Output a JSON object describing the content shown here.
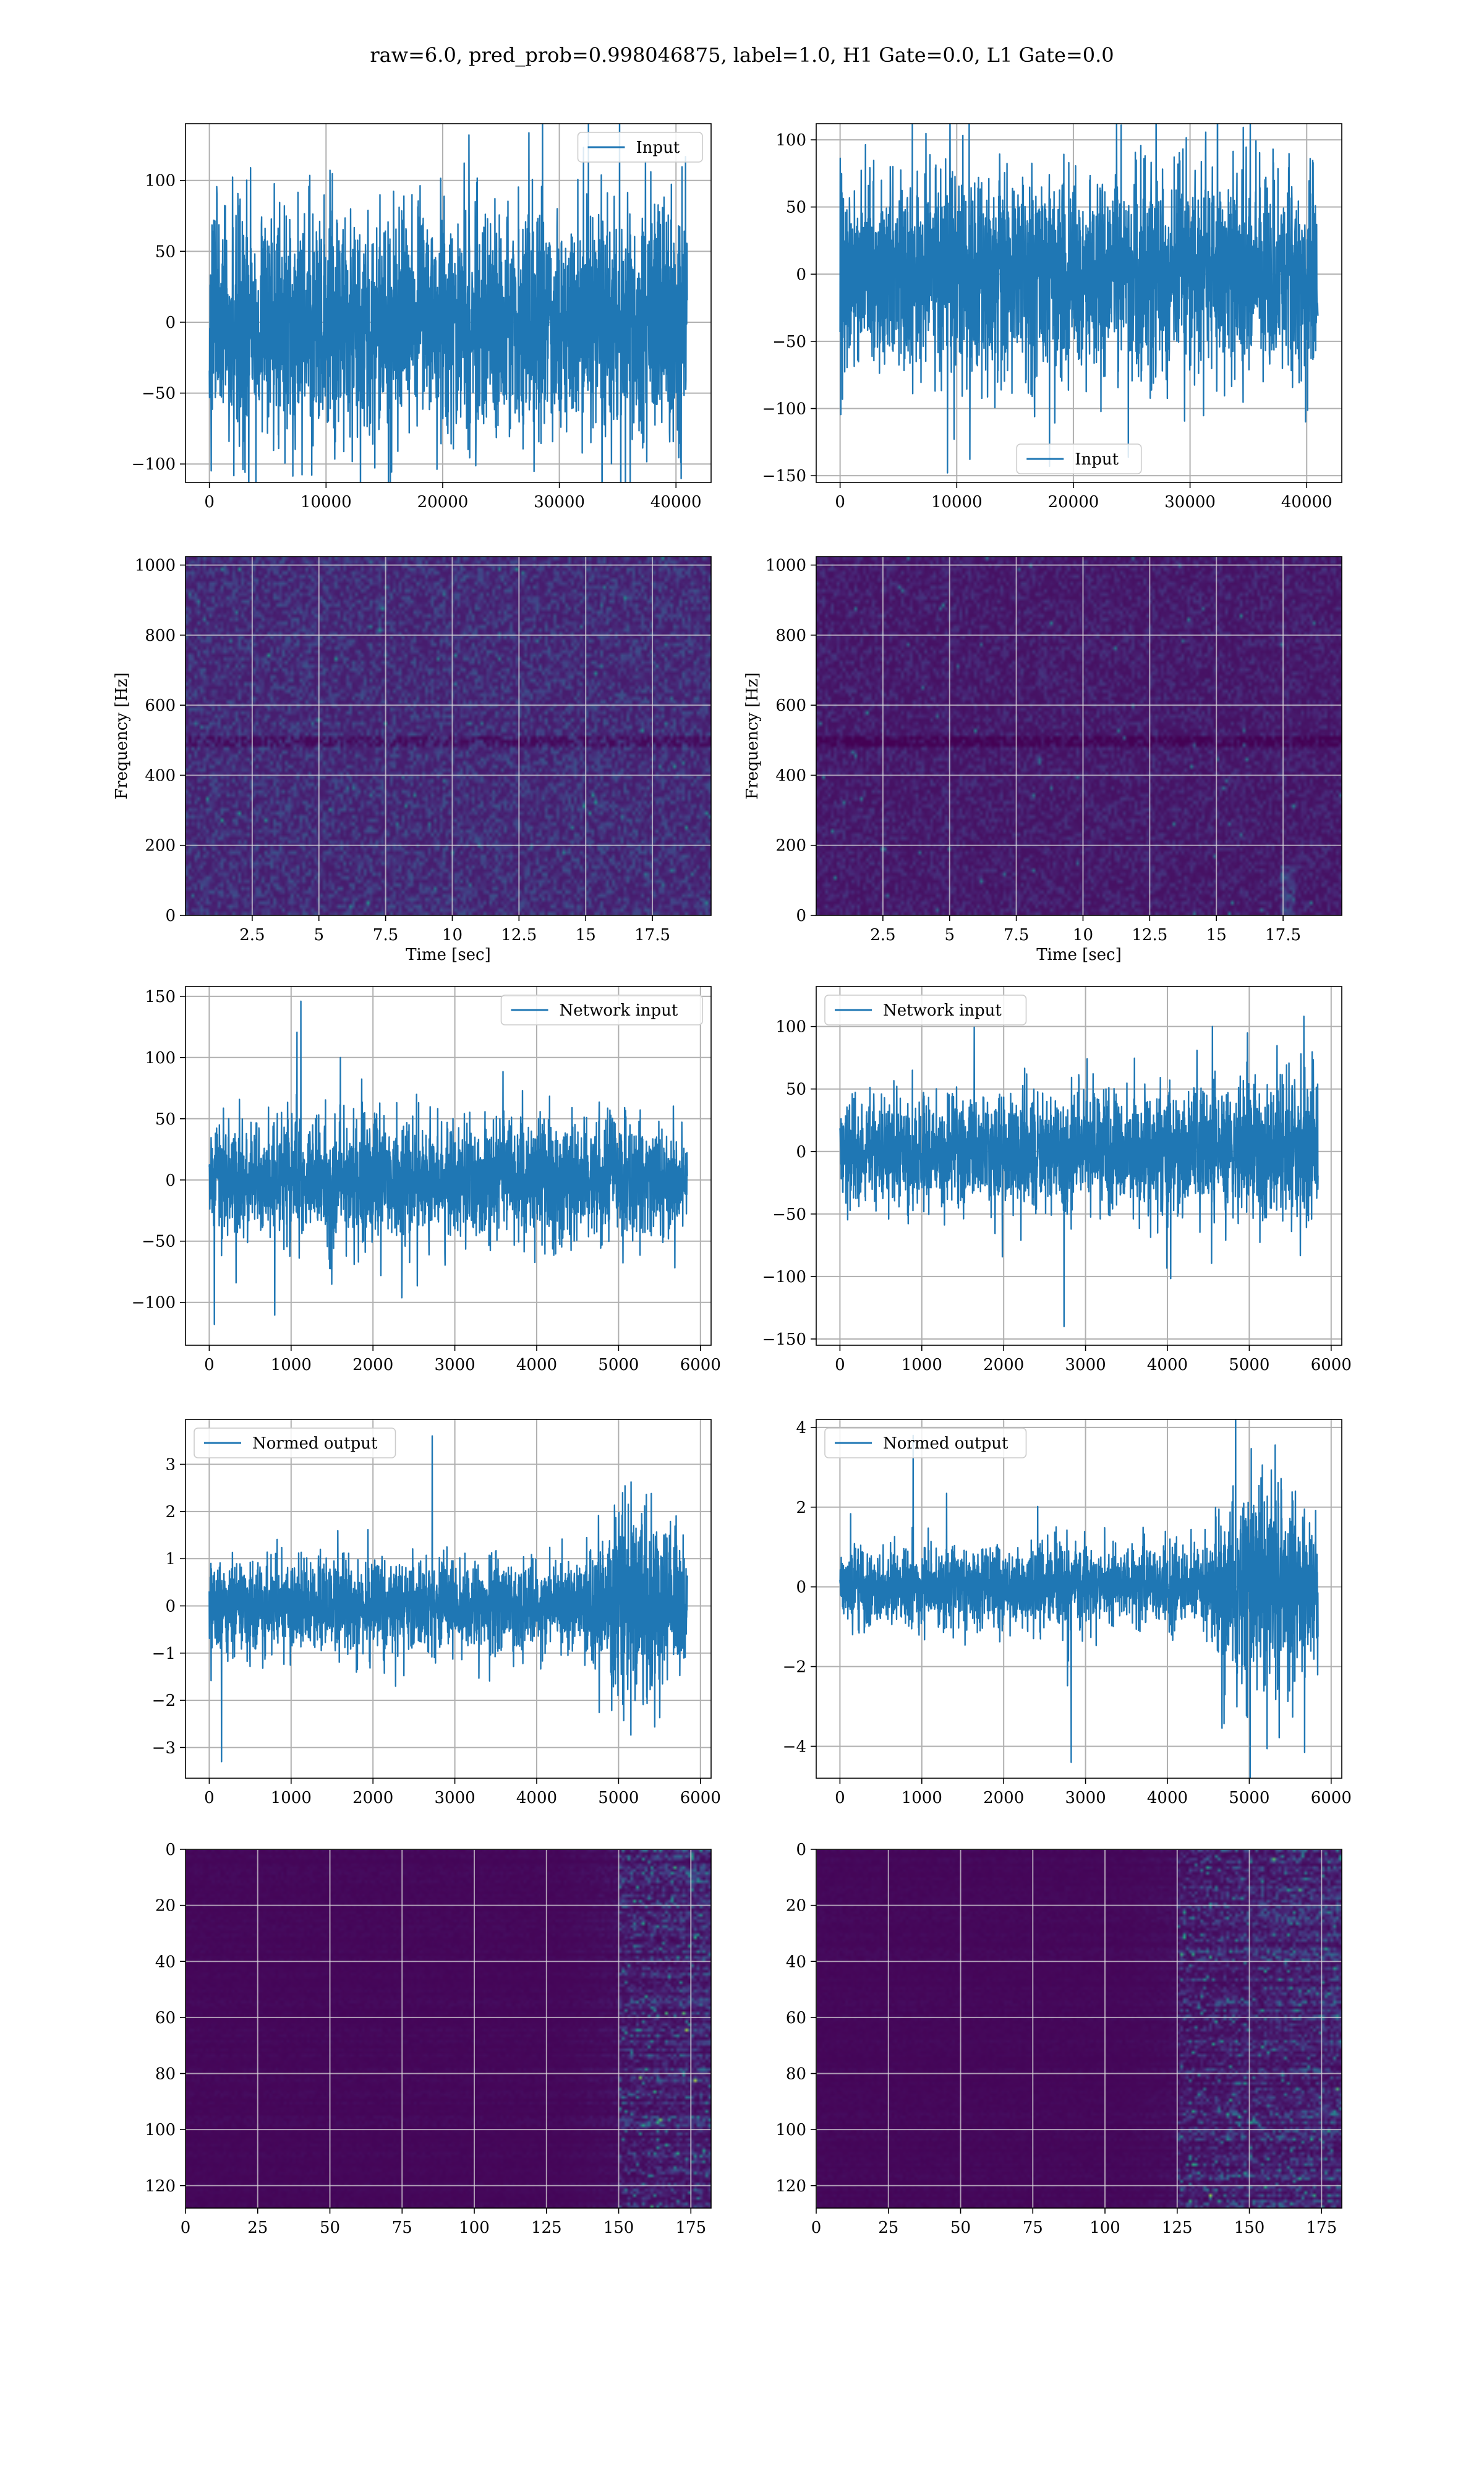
{
  "figure": {
    "title": "raw=6.0, pred_prob=0.998046875, label=1.0, H1 Gate=0.0, L1 Gate=0.0"
  },
  "colors": {
    "series": "#1f77b4",
    "grid": "#b0b0b0",
    "viridis_low": "#440154",
    "viridis_high": "#fde725"
  },
  "chart_data": [
    {
      "id": "input-h1",
      "type": "line",
      "row": 0,
      "col": 0,
      "xlim": [
        -2048,
        43008
      ],
      "ylim": [
        -113,
        140
      ],
      "xticks": [
        0,
        10000,
        20000,
        30000,
        40000
      ],
      "yticks": [
        -100,
        -50,
        0,
        50,
        100
      ],
      "legend": {
        "label": "Input",
        "loc": "upper right"
      },
      "signal": {
        "n": 40960,
        "envelope": [
          {
            "x": 0,
            "amp": 70
          },
          {
            "x": 40960,
            "amp": 70
          }
        ],
        "peak_min": -113,
        "peak_max": 132
      }
    },
    {
      "id": "input-l1",
      "type": "line",
      "row": 0,
      "col": 1,
      "xlim": [
        -2048,
        43008
      ],
      "ylim": [
        -155,
        112
      ],
      "xticks": [
        0,
        10000,
        20000,
        30000,
        40000
      ],
      "yticks": [
        -150,
        -100,
        -50,
        0,
        50,
        100
      ],
      "legend": {
        "label": "Input",
        "loc": "lower center"
      },
      "signal": {
        "n": 40960,
        "envelope": [
          {
            "x": 0,
            "amp": 65
          },
          {
            "x": 40960,
            "amp": 65
          }
        ],
        "peak_min": -143,
        "peak_max": 120
      }
    },
    {
      "id": "spectrogram-h1",
      "type": "heatmap",
      "row": 1,
      "col": 0,
      "xlim": [
        0,
        19.7
      ],
      "ylim": [
        0,
        1024
      ],
      "xticks": [
        2.5,
        5.0,
        7.5,
        10.0,
        12.5,
        15.0,
        17.5
      ],
      "yticks": [
        0,
        200,
        400,
        600,
        800,
        1000
      ],
      "xlabel": "Time [sec]",
      "ylabel": "Frequency [Hz]",
      "colormap": "viridis",
      "intensity": "moderate"
    },
    {
      "id": "spectrogram-l1",
      "type": "heatmap",
      "row": 1,
      "col": 1,
      "xlim": [
        0,
        19.7
      ],
      "ylim": [
        0,
        1024
      ],
      "xticks": [
        2.5,
        5.0,
        7.5,
        10.0,
        12.5,
        15.0,
        17.5
      ],
      "yticks": [
        0,
        200,
        400,
        600,
        800,
        1000
      ],
      "xlabel": "Time [sec]",
      "ylabel": "Frequency [Hz]",
      "colormap": "viridis",
      "intensity": "low"
    },
    {
      "id": "network-input-h1",
      "type": "line",
      "row": 2,
      "col": 0,
      "xlim": [
        -290,
        6130
      ],
      "ylim": [
        -135,
        158
      ],
      "xticks": [
        0,
        1000,
        2000,
        3000,
        4000,
        5000,
        6000
      ],
      "yticks": [
        -100,
        -50,
        0,
        50,
        100,
        150
      ],
      "legend": {
        "label": "Network input",
        "loc": "upper right"
      },
      "signal": {
        "n": 5840,
        "envelope": [
          {
            "x": 0,
            "amp": 38
          },
          {
            "x": 1500,
            "amp": 45
          },
          {
            "x": 3000,
            "amp": 40
          },
          {
            "x": 4500,
            "amp": 45
          },
          {
            "x": 5500,
            "amp": 42
          },
          {
            "x": 5840,
            "amp": 25
          }
        ],
        "peak_min": -118,
        "peak_max": 146
      }
    },
    {
      "id": "network-input-l1",
      "type": "line",
      "row": 2,
      "col": 1,
      "xlim": [
        -290,
        6130
      ],
      "ylim": [
        -155,
        132
      ],
      "xticks": [
        0,
        1000,
        2000,
        3000,
        4000,
        5000,
        6000
      ],
      "yticks": [
        -150,
        -100,
        -50,
        0,
        50,
        100
      ],
      "legend": {
        "label": "Network input",
        "loc": "upper left"
      },
      "signal": {
        "n": 5840,
        "envelope": [
          {
            "x": 0,
            "amp": 40
          },
          {
            "x": 3000,
            "amp": 40
          },
          {
            "x": 4800,
            "amp": 45
          },
          {
            "x": 5200,
            "amp": 55
          },
          {
            "x": 5840,
            "amp": 45
          }
        ],
        "peak_min": -140,
        "peak_max": 100
      }
    },
    {
      "id": "normed-output-h1",
      "type": "line",
      "row": 3,
      "col": 0,
      "xlim": [
        -290,
        6130
      ],
      "ylim": [
        -3.65,
        3.95
      ],
      "xticks": [
        0,
        1000,
        2000,
        3000,
        4000,
        5000,
        6000
      ],
      "yticks": [
        -3,
        -2,
        -1,
        0,
        1,
        2,
        3
      ],
      "legend": {
        "label": "Normed output",
        "loc": "upper left"
      },
      "signal": {
        "n": 5840,
        "envelope": [
          {
            "x": 0,
            "amp": 0.8
          },
          {
            "x": 2000,
            "amp": 0.85
          },
          {
            "x": 4500,
            "amp": 0.75
          },
          {
            "x": 4700,
            "amp": 1.3
          },
          {
            "x": 5000,
            "amp": 1.8
          },
          {
            "x": 5500,
            "amp": 1.6
          },
          {
            "x": 5840,
            "amp": 1.0
          }
        ],
        "peak_min": -3.3,
        "peak_max": 3.6
      }
    },
    {
      "id": "normed-output-l1",
      "type": "line",
      "row": 3,
      "col": 1,
      "xlim": [
        -290,
        6130
      ],
      "ylim": [
        -4.8,
        4.2
      ],
      "xticks": [
        0,
        1000,
        2000,
        3000,
        4000,
        5000,
        6000
      ],
      "yticks": [
        -4,
        -2,
        0,
        2,
        4
      ],
      "legend": {
        "label": "Normed output",
        "loc": "upper left"
      },
      "signal": {
        "n": 5840,
        "envelope": [
          {
            "x": 0,
            "amp": 0.8
          },
          {
            "x": 2000,
            "amp": 0.9
          },
          {
            "x": 4500,
            "amp": 0.8
          },
          {
            "x": 4700,
            "amp": 1.8
          },
          {
            "x": 5100,
            "amp": 2.5
          },
          {
            "x": 5500,
            "amp": 2.2
          },
          {
            "x": 5840,
            "amp": 1.4
          }
        ],
        "peak_min": -4.4,
        "peak_max": 3.8
      }
    },
    {
      "id": "activation-map-h1",
      "type": "heatmap",
      "row": 4,
      "col": 0,
      "xlim": [
        0,
        182
      ],
      "ylim": [
        128,
        0
      ],
      "xticks": [
        0,
        25,
        50,
        75,
        100,
        125,
        150,
        175
      ],
      "yticks": [
        0,
        20,
        40,
        60,
        80,
        100,
        120
      ],
      "colormap": "viridis",
      "active_from_col": 150
    },
    {
      "id": "activation-map-l1",
      "type": "heatmap",
      "row": 4,
      "col": 1,
      "xlim": [
        0,
        182
      ],
      "ylim": [
        128,
        0
      ],
      "xticks": [
        0,
        25,
        50,
        75,
        100,
        125,
        150,
        175
      ],
      "yticks": [
        0,
        20,
        40,
        60,
        80,
        100,
        120
      ],
      "colormap": "viridis",
      "active_from_col": 125
    }
  ]
}
